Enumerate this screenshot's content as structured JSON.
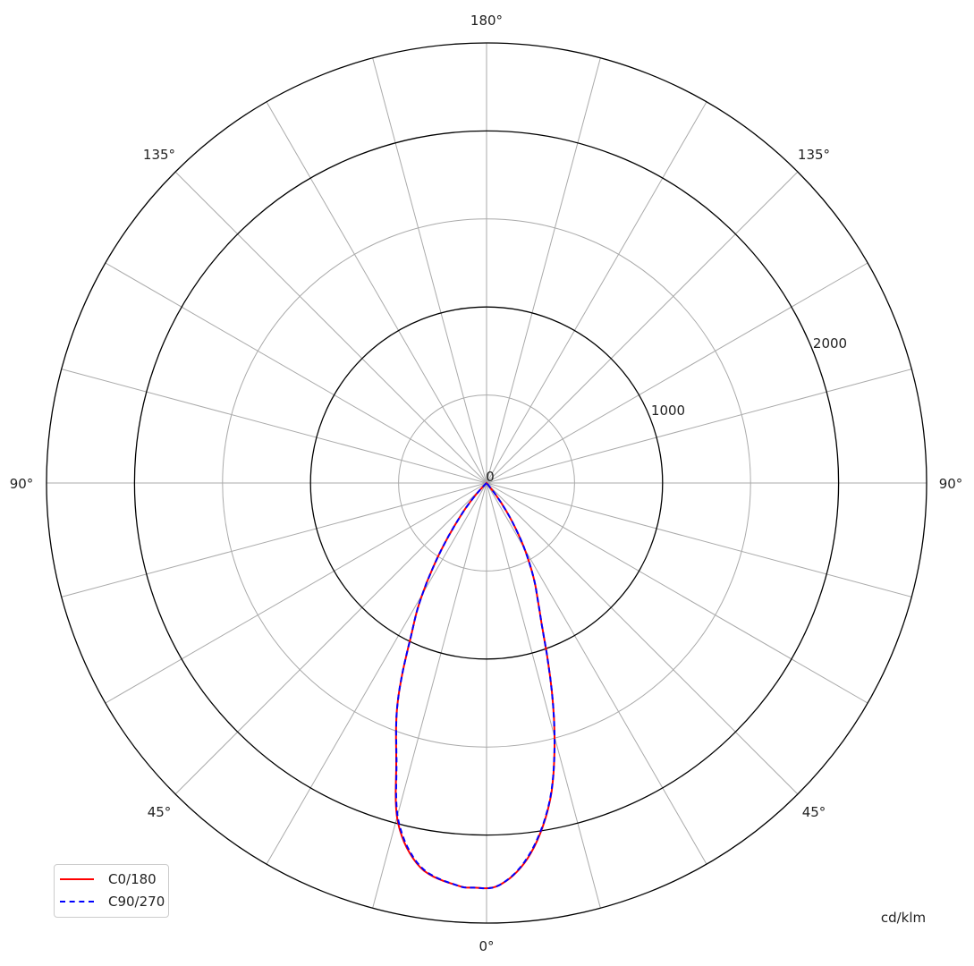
{
  "chart_data": {
    "type": "polar",
    "unit_label": "cd/klm",
    "radial_range": [
      0,
      2500
    ],
    "radial_rings": [
      500,
      1000,
      1500,
      2000,
      2500
    ],
    "radial_tick_labels": [
      "0",
      "1000",
      "2000"
    ],
    "angle_tick_labels": {
      "bottom": "0°",
      "lower_left": "45°",
      "lower_right": "45°",
      "left": "90°",
      "right": "90°",
      "upper_left": "135°",
      "upper_right": "135°",
      "top": "180°"
    },
    "spoke_step_degrees": 15,
    "grid": true,
    "legend_position": "bottom-left",
    "series": [
      {
        "name": "C0/180",
        "color": "#ff0000",
        "style": "solid",
        "angles": [
          -45,
          -38,
          -33.4,
          -28.8,
          -26,
          -22,
          -18,
          -14.6,
          -9.8,
          -4.3,
          -1.8,
          1.8,
          6.25,
          11,
          14.7,
          20,
          22.8,
          26,
          29,
          35,
          40
        ],
        "values": [
          0,
          250,
          500,
          811,
          990,
          1350,
          1660,
          1995,
          2215,
          2291,
          2300,
          2286,
          2145,
          1862,
          1523,
          973,
          771,
          620,
          477,
          200,
          0
        ]
      },
      {
        "name": "C90/270",
        "color": "#0000ff",
        "style": "dashed",
        "angles": [
          -45,
          -38,
          -33.4,
          -28.8,
          -26,
          -22,
          -18,
          -14.6,
          -9.8,
          -4.3,
          -1.8,
          1.8,
          6.25,
          11,
          14.7,
          20,
          22.8,
          26,
          29,
          35,
          40
        ],
        "values": [
          0,
          250,
          500,
          811,
          990,
          1350,
          1655,
          1985,
          2210,
          2291,
          2300,
          2286,
          2140,
          1858,
          1523,
          973,
          771,
          620,
          477,
          200,
          0
        ]
      }
    ]
  }
}
